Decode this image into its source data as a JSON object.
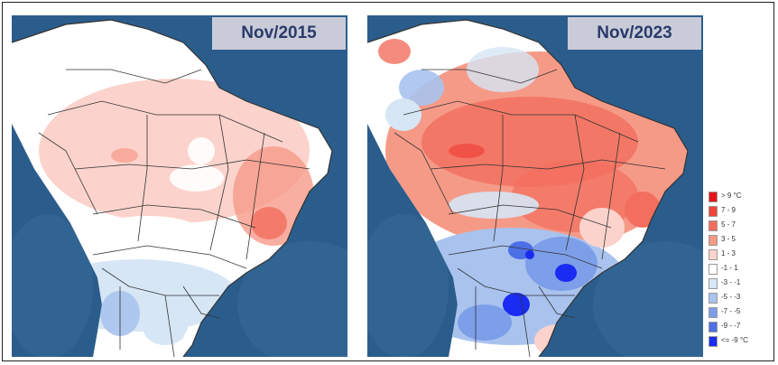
{
  "panels": [
    {
      "title": "Nov/2015"
    },
    {
      "title": "Nov/2023"
    }
  ],
  "legend": {
    "items": [
      {
        "label": "> 9 °C",
        "color": "#e8141a"
      },
      {
        "label": "7 - 9",
        "color": "#f0433a"
      },
      {
        "label": "5 - 7",
        "color": "#f36e5e"
      },
      {
        "label": "3 - 5",
        "color": "#f69a88"
      },
      {
        "label": "1 - 3",
        "color": "#fbd3cc"
      },
      {
        "label": "-1 - 1",
        "color": "#ffffff"
      },
      {
        "label": "-3 - -1",
        "color": "#d6e6f5"
      },
      {
        "label": "-5 - -3",
        "color": "#a9c3ee"
      },
      {
        "label": "-7 - -5",
        "color": "#7d9ee8"
      },
      {
        "label": "-9 - -7",
        "color": "#4d6fe6"
      },
      {
        "label": "<= -9 °C",
        "color": "#1a2bf2"
      }
    ]
  },
  "colors": {
    "ocean": "#2b5d8c",
    "border_line": "#333333",
    "title_bg": "#c9ccd8",
    "title_text": "#2a3a6a"
  }
}
